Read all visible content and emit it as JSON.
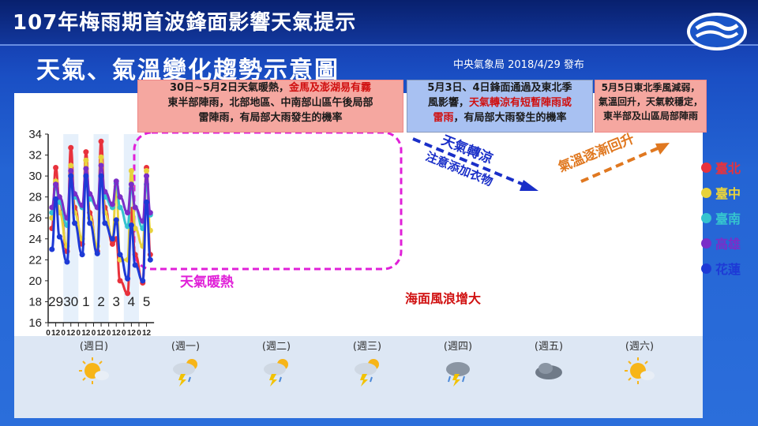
{
  "header": {
    "title": "107年梅雨期首波鋒面影響天氣提示",
    "subtitle": "天氣、氣溫變化趨勢示意圖",
    "issuer": "中央氣象局  2018/4/29 發布"
  },
  "notes": {
    "note1_a": "30日~5月2日天氣暖熱，",
    "note1_b": "金馬及澎湖易有霧",
    "note1_c": "東半部陣雨，北部地區、中南部山區午後局部",
    "note1_d": "雷陣雨，有局部大雨發生的機率",
    "note2_a": "5月3日、4日鋒面通過及東北季",
    "note2_b": "風影響，",
    "note2_c": "天氣轉涼有短暫陣雨或",
    "note2_d": "雷雨",
    "note2_e": "，有局部大雨發生的機率",
    "note3_a": "5月5日東北季風減弱，",
    "note3_b": "氣溫回升，天氣較穩定，",
    "note3_c": "東半部及山區局部陣雨"
  },
  "annotations": {
    "warm": "天氣暖熱",
    "cool_1": "天氣轉涼",
    "cool_2": "注意添加衣物",
    "rise": "氣溫逐漸回升",
    "wave": "海面風浪增大"
  },
  "weekdays": [
    "(週日)",
    "(週一)",
    "(週二)",
    "(週三)",
    "(週四)",
    "(週五)",
    "(週六)"
  ],
  "weather_icons": [
    "sunny-cloud-icon",
    "thunderstorm-icon",
    "thunderstorm-icon",
    "thunderstorm-icon",
    "rain-cloud-icon",
    "cloudy-icon",
    "sunny-cloud-icon"
  ],
  "colors": {
    "taipei": "#e8323c",
    "taichung": "#e8d23c",
    "tainan": "#35c3cf",
    "kaohsiung": "#7a2ec8",
    "hualien": "#1e3ad6"
  },
  "chart_data": {
    "type": "line",
    "title": "",
    "xlabel": "",
    "ylabel": "",
    "ylim": [
      16,
      34
    ],
    "yticks": [
      16,
      18,
      20,
      22,
      24,
      26,
      28,
      30,
      32,
      34
    ],
    "days": [
      "29",
      "30",
      "1",
      "2",
      "3",
      "4",
      "5"
    ],
    "hour_ticks": [
      "0",
      "12",
      "0",
      "12",
      "0",
      "12",
      "0",
      "12",
      "0",
      "12",
      "0",
      "12",
      "0",
      "12"
    ],
    "x_hours": [
      6,
      12,
      18,
      30,
      36,
      42,
      54,
      60,
      66,
      78,
      84,
      90,
      102,
      108,
      114,
      126,
      132,
      138,
      150,
      156,
      162
    ],
    "series": [
      {
        "name": "臺北",
        "color_key": "taipei",
        "values": [
          25.0,
          30.8,
          27.5,
          22.8,
          32.7,
          27.0,
          23.5,
          32.3,
          26.5,
          22.8,
          33.3,
          27.0,
          23.5,
          24.0,
          20.0,
          18.8,
          26.8,
          22.5,
          19.8,
          30.8,
          22.5
        ]
      },
      {
        "name": "臺中",
        "color_key": "taichung",
        "values": [
          26.0,
          29.5,
          26.5,
          23.3,
          31.0,
          26.5,
          24.0,
          31.5,
          26.0,
          23.3,
          31.8,
          26.5,
          24.0,
          29.0,
          22.0,
          22.0,
          30.5,
          25.0,
          23.3,
          30.5,
          24.8
        ]
      },
      {
        "name": "臺南",
        "color_key": "tainan",
        "values": [
          26.5,
          29.0,
          27.5,
          25.3,
          30.0,
          28.0,
          27.0,
          30.0,
          27.8,
          27.0,
          30.0,
          28.0,
          27.0,
          29.3,
          27.0,
          25.2,
          28.8,
          27.0,
          25.0,
          29.2,
          26.3
        ]
      },
      {
        "name": "高雄",
        "color_key": "kaohsiung",
        "values": [
          27.0,
          29.2,
          28.0,
          26.0,
          30.5,
          28.3,
          27.2,
          30.7,
          28.3,
          27.0,
          31.0,
          28.5,
          27.3,
          29.5,
          28.0,
          26.5,
          29.2,
          27.0,
          25.7,
          30.0,
          26.5
        ]
      },
      {
        "name": "花蓮",
        "color_key": "hualien",
        "values": [
          23.0,
          27.8,
          24.2,
          21.8,
          30.0,
          25.5,
          22.5,
          30.0,
          25.5,
          22.6,
          30.0,
          25.5,
          24.0,
          25.8,
          22.5,
          20.2,
          25.3,
          21.5,
          20.0,
          27.5,
          22.0
        ]
      }
    ]
  }
}
